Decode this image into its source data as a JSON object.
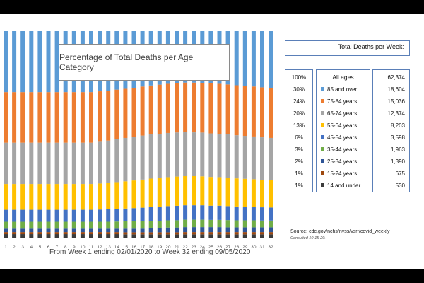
{
  "chart_data": {
    "type": "bar",
    "stacked": true,
    "normalized": true,
    "title": "Percentage of Total  Deaths per Age Category",
    "xlabel": "From Week 1 ending 02/01/2020 to Week 32 ending 09/05/2020",
    "ylabel": "",
    "ylim": [
      0,
      100
    ],
    "categories": [
      "1",
      "2",
      "3",
      "4",
      "5",
      "6",
      "7",
      "8",
      "9",
      "10",
      "11",
      "12",
      "13",
      "14",
      "15",
      "16",
      "17",
      "18",
      "19",
      "20",
      "21",
      "22",
      "23",
      "24",
      "25",
      "26",
      "27",
      "28",
      "29",
      "30",
      "31",
      "32"
    ],
    "series": [
      {
        "name": "14 and under",
        "color": "#3c3c3c",
        "values": [
          1.7,
          1.7,
          1.7,
          1.7,
          1.7,
          1.7,
          1.7,
          1.7,
          1.7,
          1.7,
          1.7,
          1.7,
          1.7,
          1.7,
          1.6,
          1.6,
          1.6,
          1.6,
          1.6,
          1.6,
          1.6,
          1.6,
          1.6,
          1.6,
          1.6,
          1.6,
          1.6,
          1.6,
          1.6,
          1.6,
          1.6,
          1.6
        ]
      },
      {
        "name": "15-24 years",
        "color": "#9e480e",
        "values": [
          1.0,
          1.0,
          1.0,
          1.0,
          1.0,
          1.0,
          1.0,
          1.0,
          1.0,
          1.0,
          1.0,
          1.0,
          1.0,
          1.0,
          1.0,
          1.0,
          1.0,
          1.0,
          1.0,
          1.0,
          1.0,
          1.1,
          1.1,
          1.1,
          1.1,
          1.1,
          1.1,
          1.1,
          1.1,
          1.1,
          1.1,
          1.1
        ]
      },
      {
        "name": "25-34 years",
        "color": "#2e5597",
        "values": [
          2.0,
          2.0,
          2.0,
          2.0,
          2.0,
          2.0,
          2.0,
          2.0,
          2.0,
          2.0,
          2.0,
          2.0,
          2.0,
          2.0,
          2.1,
          2.1,
          2.1,
          2.2,
          2.2,
          2.3,
          2.3,
          2.4,
          2.4,
          2.4,
          2.4,
          2.4,
          2.3,
          2.3,
          2.3,
          2.3,
          2.3,
          2.3
        ]
      },
      {
        "name": "35-44 years",
        "color": "#70ad47",
        "values": [
          3.0,
          3.0,
          3.0,
          3.0,
          3.0,
          3.0,
          3.0,
          3.0,
          3.0,
          3.0,
          3.0,
          3.0,
          3.0,
          3.1,
          3.2,
          3.2,
          3.3,
          3.3,
          3.4,
          3.5,
          3.5,
          3.6,
          3.6,
          3.6,
          3.5,
          3.5,
          3.5,
          3.4,
          3.4,
          3.4,
          3.3,
          3.3
        ]
      },
      {
        "name": "45-54 years",
        "color": "#4472c4",
        "values": [
          5.8,
          5.8,
          5.8,
          5.8,
          5.8,
          5.8,
          5.8,
          5.8,
          5.8,
          5.8,
          5.8,
          5.9,
          6.0,
          6.1,
          6.2,
          6.4,
          6.5,
          6.7,
          6.8,
          6.9,
          7.0,
          7.0,
          7.0,
          7.0,
          6.9,
          6.9,
          6.8,
          6.7,
          6.6,
          6.5,
          6.4,
          6.3
        ]
      },
      {
        "name": "55-64 years",
        "color": "#ffc000",
        "values": [
          12.5,
          12.5,
          12.5,
          12.5,
          12.5,
          12.5,
          12.5,
          12.5,
          12.5,
          12.5,
          12.5,
          12.6,
          12.8,
          13.0,
          13.2,
          13.4,
          13.6,
          13.8,
          13.9,
          14.0,
          14.1,
          14.1,
          14.1,
          14.0,
          13.9,
          13.8,
          13.7,
          13.6,
          13.5,
          13.4,
          13.3,
          13.2
        ]
      },
      {
        "name": "65-74 years",
        "color": "#a5a5a5",
        "values": [
          20.0,
          20.0,
          20.0,
          20.0,
          20.0,
          20.0,
          20.0,
          20.0,
          20.0,
          20.0,
          20.0,
          20.2,
          20.5,
          20.8,
          21.0,
          21.2,
          21.3,
          21.4,
          21.4,
          21.4,
          21.3,
          21.3,
          21.2,
          21.2,
          21.1,
          21.0,
          21.0,
          20.9,
          20.8,
          20.7,
          20.6,
          20.5
        ]
      },
      {
        "name": "75-84 years",
        "color": "#ed7d31",
        "values": [
          24.5,
          24.5,
          24.5,
          24.5,
          24.5,
          24.5,
          24.5,
          24.5,
          24.5,
          24.5,
          24.5,
          24.4,
          24.2,
          24.0,
          23.8,
          23.7,
          23.7,
          23.7,
          23.8,
          23.8,
          23.9,
          24.0,
          24.1,
          24.1,
          24.2,
          24.2,
          24.2,
          24.2,
          24.2,
          24.2,
          24.2,
          24.2
        ]
      },
      {
        "name": "85 and over",
        "color": "#5b9bd5",
        "values": [
          29.5,
          29.5,
          29.5,
          29.5,
          29.5,
          29.5,
          29.5,
          29.5,
          29.5,
          29.5,
          29.5,
          29.1,
          28.8,
          28.3,
          27.9,
          27.4,
          26.8,
          26.3,
          25.9,
          25.5,
          25.0,
          24.9,
          24.9,
          25.0,
          25.3,
          25.5,
          25.8,
          26.2,
          26.5,
          26.8,
          27.2,
          27.5
        ]
      }
    ]
  },
  "panel": {
    "title": "Total Deaths per Week:",
    "header_label": "All ages",
    "header_pct": "100%",
    "header_value": "62,374",
    "rows": [
      {
        "label": "85 and over",
        "pct": "30%",
        "value": "18,604",
        "color": "#5b9bd5"
      },
      {
        "label": "75-84 years",
        "pct": "24%",
        "value": "15,036",
        "color": "#ed7d31"
      },
      {
        "label": "65-74 years",
        "pct": "20%",
        "value": "12,374",
        "color": "#a5a5a5"
      },
      {
        "label": "55-64 years",
        "pct": "13%",
        "value": "8,203",
        "color": "#ffc000"
      },
      {
        "label": "45-54 years",
        "pct": "6%",
        "value": "3,598",
        "color": "#4472c4"
      },
      {
        "label": "35-44 years",
        "pct": "3%",
        "value": "1,963",
        "color": "#70ad47"
      },
      {
        "label": "25-34 years",
        "pct": "2%",
        "value": "1,390",
        "color": "#2e5597"
      },
      {
        "label": "15-24 years",
        "pct": "1%",
        "value": "675",
        "color": "#9e480e"
      },
      {
        "label": "14 and under",
        "pct": "1%",
        "value": "530",
        "color": "#3c3c3c"
      }
    ]
  },
  "source": {
    "text": "Source: cdc.gov/nchs/nvss/vsrr/covid_weekly",
    "consulted": "Consulted 10-15-20."
  }
}
